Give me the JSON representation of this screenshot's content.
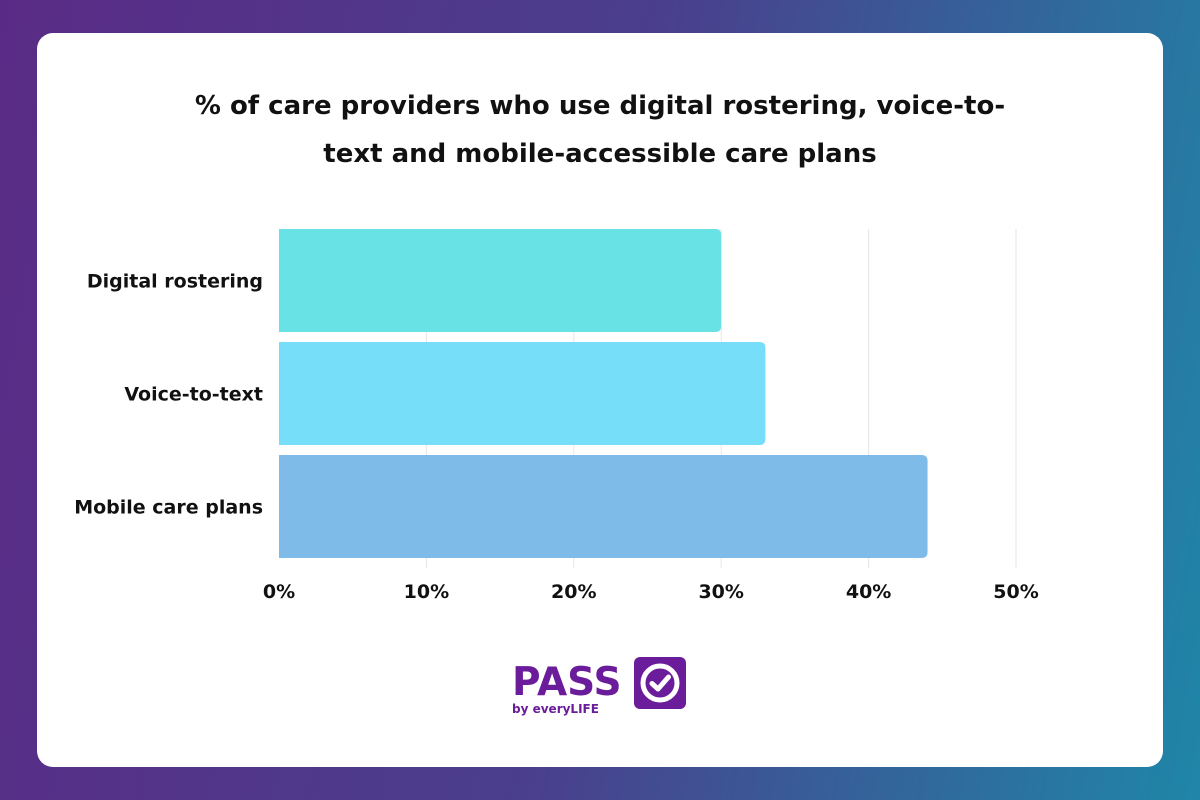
{
  "chart_data": {
    "type": "bar",
    "orientation": "horizontal",
    "title_lines": [
      "% of care providers who use digital rostering, voice-to-",
      "text and mobile-accessible care plans"
    ],
    "categories": [
      "Digital rostering",
      "Voice-to-text",
      "Mobile care plans"
    ],
    "values": [
      30,
      33,
      44
    ],
    "xlim": [
      0,
      50
    ],
    "xticks": [
      "0%",
      "10%",
      "20%",
      "30%",
      "40%",
      "50%"
    ],
    "xtick_values": [
      0,
      10,
      20,
      30,
      40,
      50
    ],
    "grid": true,
    "colors": [
      "#68e2e4",
      "#76def9",
      "#7fbbe8"
    ],
    "value_unit": "%"
  },
  "logo": {
    "wordmark": "PASS",
    "tagline": "by everyLIFE",
    "color": "#6a1c9a",
    "icon": "check-circle-icon"
  }
}
